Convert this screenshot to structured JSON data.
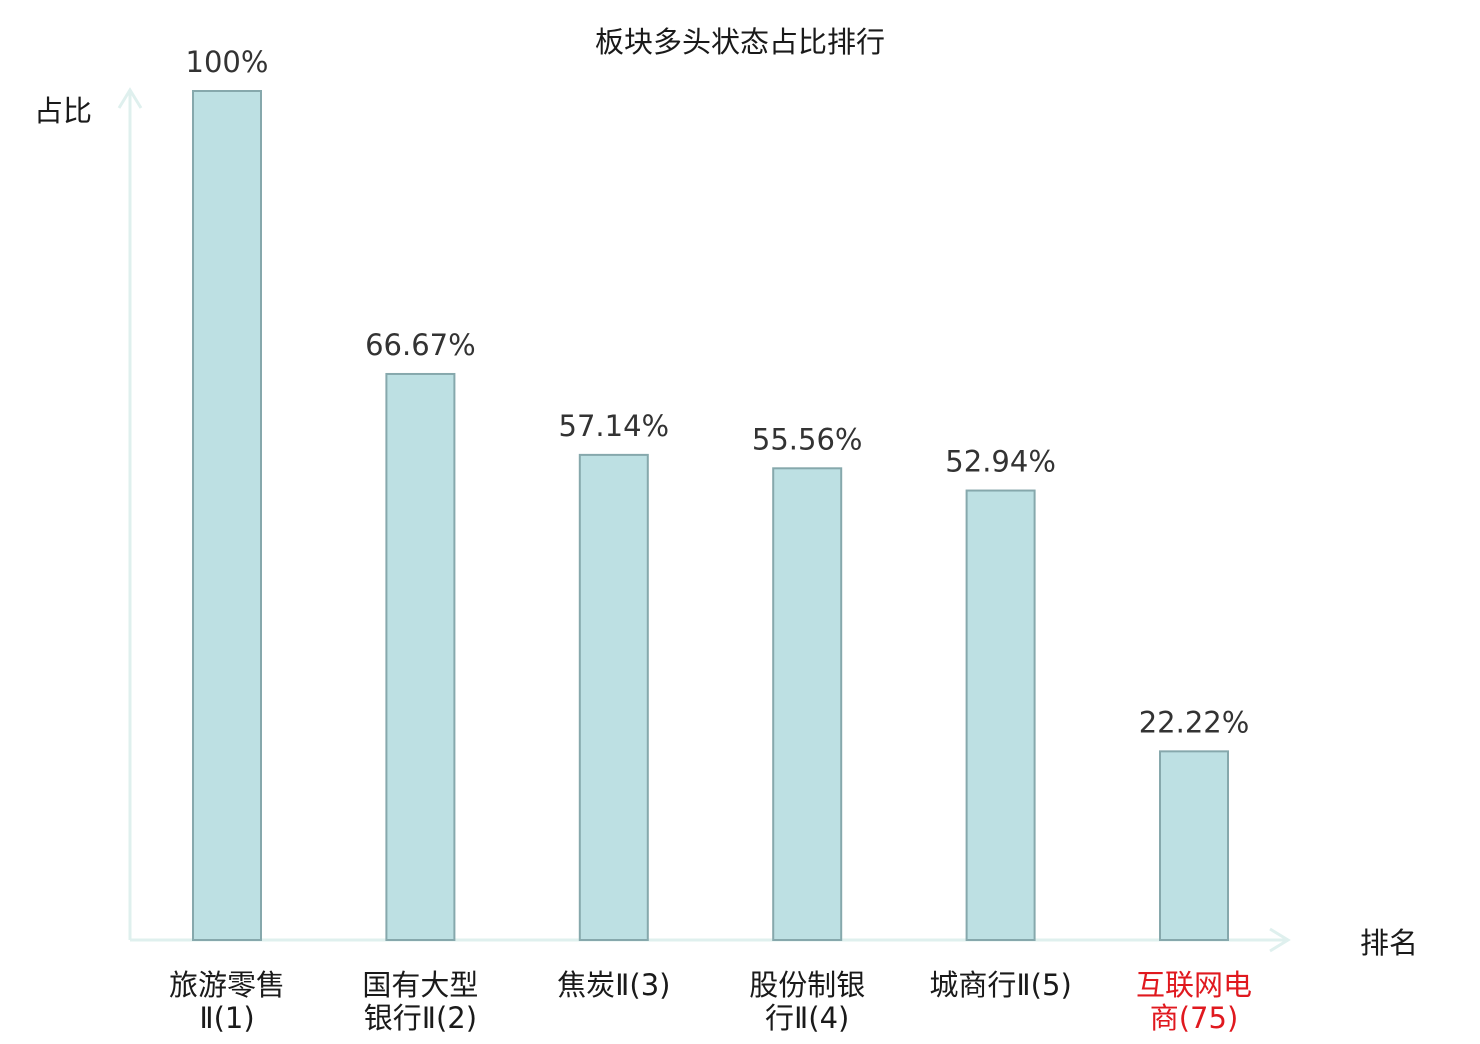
{
  "chart_data": {
    "type": "bar",
    "title": "板块多头状态占比排行",
    "ylabel": "占比",
    "xlabel": "排名",
    "ylim": [
      0,
      100
    ],
    "grid": false,
    "categories": [
      {
        "lines": [
          "旅游零售",
          "Ⅱ(1)"
        ],
        "highlight": false
      },
      {
        "lines": [
          "国有大型",
          "银行Ⅱ(2)"
        ],
        "highlight": false
      },
      {
        "lines": [
          "焦炭Ⅱ(3)"
        ],
        "highlight": false
      },
      {
        "lines": [
          "股份制银",
          "行Ⅱ(4)"
        ],
        "highlight": false
      },
      {
        "lines": [
          "城商行Ⅱ(5)"
        ],
        "highlight": false
      },
      {
        "lines": [
          "互联网电",
          "商(75)"
        ],
        "highlight": true
      }
    ],
    "values": [
      100,
      66.67,
      57.14,
      55.56,
      52.94,
      22.22
    ],
    "value_labels": [
      "100%",
      "66.67%",
      "57.14%",
      "55.56%",
      "52.94%",
      "22.22%"
    ],
    "colors": {
      "bar_fill": "#bde0e3",
      "bar_stroke": "#86a8ac",
      "axis": "#dff0ee",
      "text": "#1a1a1a",
      "value_text": "#333333",
      "highlight": "#e0191f"
    }
  }
}
